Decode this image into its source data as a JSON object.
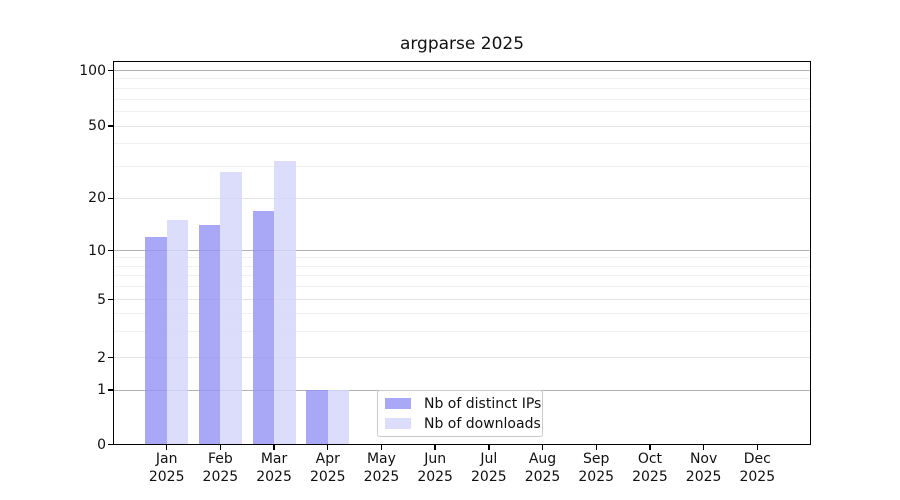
{
  "figure": {
    "title": "argparse 2025",
    "background": "#ffffff"
  },
  "legend": {
    "items": [
      {
        "label": "Nb of distinct IPs"
      },
      {
        "label": "Nb of downloads"
      }
    ]
  },
  "chart_data": {
    "type": "bar",
    "title": "argparse 2025",
    "categories": [
      "Jan",
      "Feb",
      "Mar",
      "Apr",
      "May",
      "Jun",
      "Jul",
      "Aug",
      "Sep",
      "Oct",
      "Nov",
      "Dec"
    ],
    "x_year_label": "2025",
    "series": [
      {
        "name": "Nb of distinct IPs",
        "color": "#9595f5",
        "opacity": 0.82,
        "values": [
          12,
          14,
          17,
          1,
          0,
          0,
          0,
          0,
          0,
          0,
          0,
          0
        ]
      },
      {
        "name": "Nb of downloads",
        "color": "#d4d4fa",
        "opacity": 0.82,
        "values": [
          15,
          28,
          32,
          1,
          0,
          0,
          0,
          0,
          0,
          0,
          0,
          0
        ]
      }
    ],
    "y_axis": {
      "scale": "symlog",
      "ticks": [
        0,
        1,
        2,
        5,
        10,
        20,
        50,
        100
      ],
      "range_top": 115
    },
    "gridlines": {
      "major": [
        1,
        10,
        100
      ],
      "secondary": [
        2,
        5,
        20,
        50
      ],
      "minor": [
        3,
        4,
        6,
        7,
        8,
        9,
        30,
        40,
        60,
        70,
        80,
        90
      ]
    },
    "legend_position": "inside-bottom-center",
    "grid": "horizontal"
  }
}
